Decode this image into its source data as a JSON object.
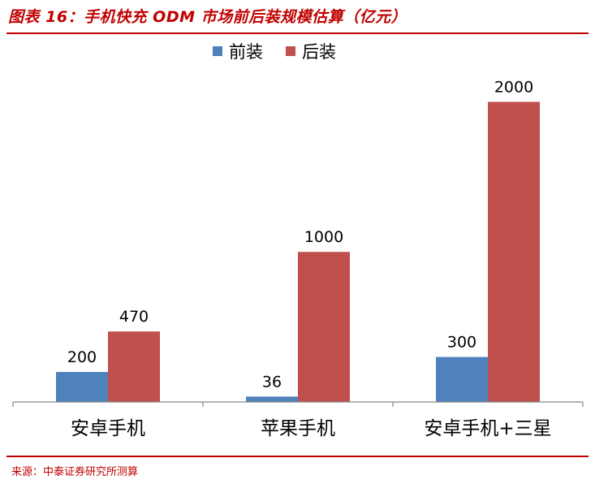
{
  "title": "图表 16：手机快充 ODM 市场前后装规模估算（亿元）",
  "source": "来源：中泰证券研究所测算",
  "colors": {
    "accent": "#c00000",
    "front": "#4f81bd",
    "rear": "#c0504d"
  },
  "legend": [
    {
      "name": "前装",
      "color": "#4f81bd"
    },
    {
      "name": "后装",
      "color": "#c0504d"
    }
  ],
  "chart_data": {
    "type": "bar",
    "categories": [
      "安卓手机",
      "苹果手机",
      "安卓手机+三星"
    ],
    "series": [
      {
        "name": "前装",
        "values": [
          200,
          36,
          300
        ],
        "color": "#4f81bd"
      },
      {
        "name": "后装",
        "values": [
          470,
          1000,
          2000
        ],
        "color": "#c0504d"
      }
    ],
    "ylim": [
      0,
      2300
    ],
    "grid": false,
    "legend_position": "top-center",
    "data_labels": true
  }
}
